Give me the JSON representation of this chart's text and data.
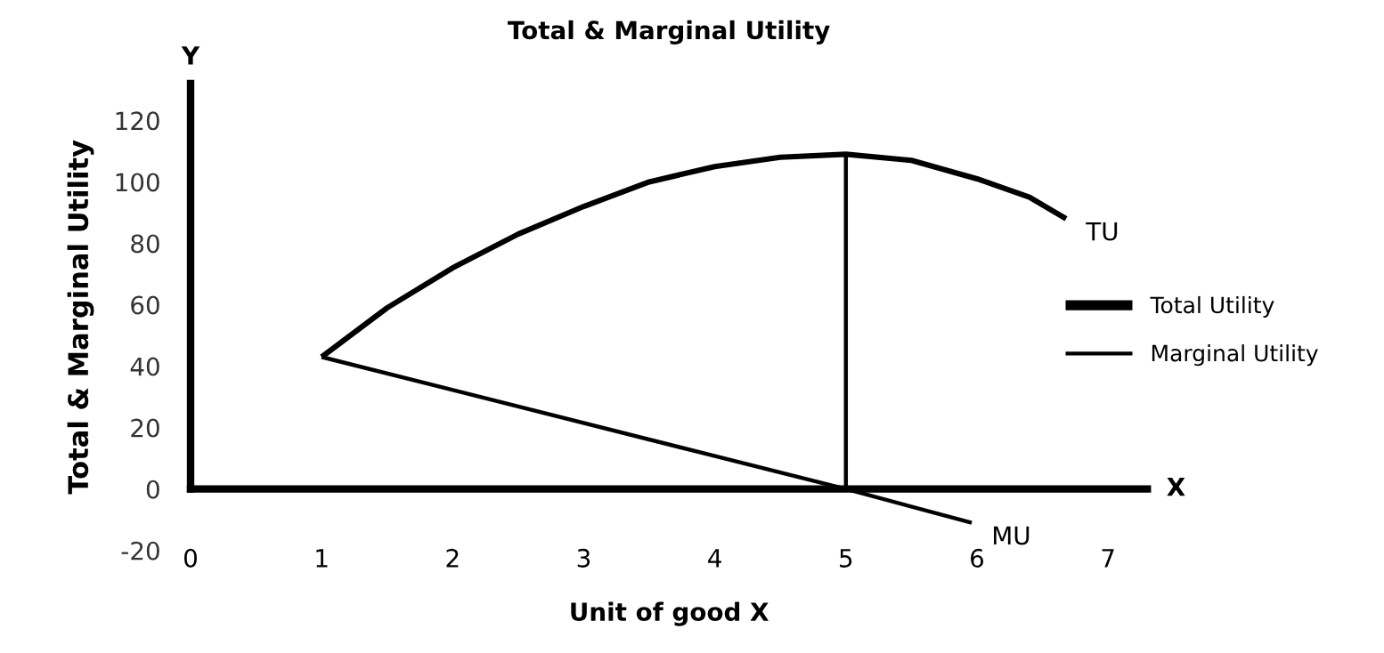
{
  "chart_data": {
    "type": "line",
    "title": "Total & Marginal Utility",
    "xlabel": "Unit of good X",
    "ylabel": "Total & Marginal Utility",
    "xlim": [
      0,
      7.3
    ],
    "xticks": [
      0,
      1,
      2,
      3,
      4,
      5,
      6,
      7
    ],
    "ylim": [
      -20,
      132
    ],
    "yticks": [
      -20,
      0,
      20,
      40,
      60,
      80,
      100,
      120
    ],
    "series": [
      {
        "name": "Total Utility",
        "color": "#000000",
        "x": [
          1,
          1.5,
          2,
          2.5,
          3,
          3.5,
          4,
          4.5,
          5,
          5.5,
          6,
          6.4,
          6.68
        ],
        "values": [
          43,
          59,
          72,
          83,
          92,
          100,
          105,
          108,
          109,
          107,
          101,
          95,
          88
        ]
      },
      {
        "name": "Marginal Utility",
        "color": "#000000",
        "x": [
          1,
          5,
          5.96
        ],
        "values": [
          43,
          0,
          -11
        ]
      }
    ],
    "ref_lines": [
      {
        "axis": "x",
        "value": 5,
        "color": "#000000"
      }
    ],
    "annotations": [
      "TU",
      "MU",
      "Y",
      "X"
    ],
    "legend": "right",
    "grid": false,
    "marker": "none",
    "line_style": "solid"
  }
}
